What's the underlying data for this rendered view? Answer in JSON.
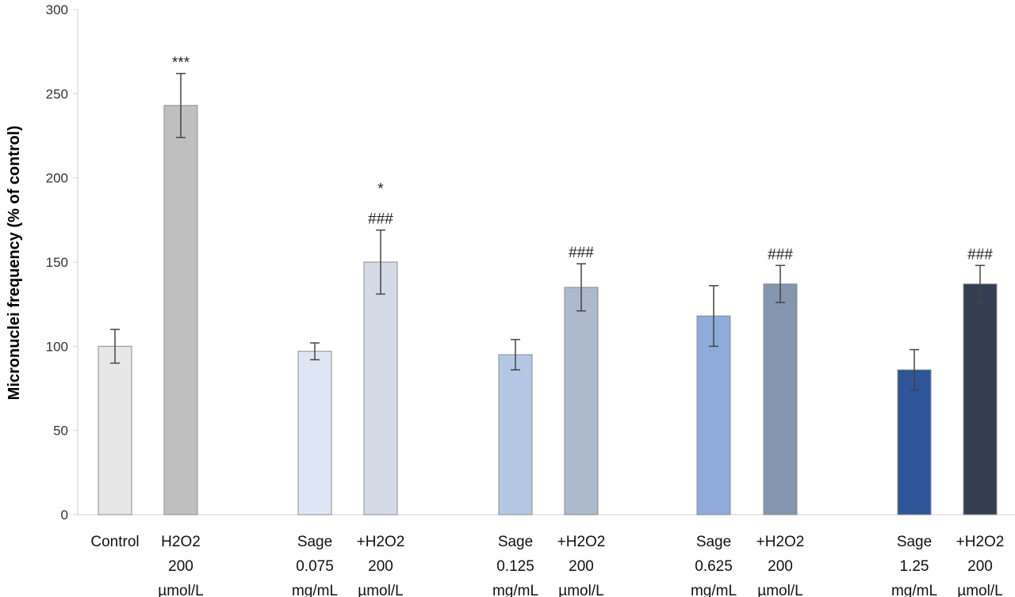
{
  "chart_data": {
    "type": "bar",
    "ylabel": "Micronuclei frequency (% of control)",
    "ylim": [
      0,
      300
    ],
    "yticks": [
      0,
      50,
      100,
      150,
      200,
      250,
      300
    ],
    "grid": false,
    "bars": [
      {
        "label_lines": [
          "Control"
        ],
        "value": 100,
        "error": 10,
        "color": "#e7e7e7",
        "annotations": []
      },
      {
        "label_lines": [
          "H2O2",
          "200",
          "µmol/L"
        ],
        "value": 243,
        "error": 19,
        "color": "#c0c0c0",
        "annotations": [
          "***"
        ]
      },
      {
        "label_lines": [
          "Sage",
          "0.075",
          "mg/mL"
        ],
        "value": 97,
        "error": 5,
        "color": "#dfe6f3",
        "annotations": []
      },
      {
        "label_lines": [
          "+H2O2",
          "200",
          "µmol/L"
        ],
        "value": 150,
        "error": 19,
        "color": "#d5dbe6",
        "annotations": [
          "*",
          "###"
        ]
      },
      {
        "label_lines": [
          "Sage",
          "0.125",
          "mg/mL"
        ],
        "value": 95,
        "error": 9,
        "color": "#b4c8e6",
        "annotations": []
      },
      {
        "label_lines": [
          "+H2O2",
          "200",
          "µmol/L"
        ],
        "value": 135,
        "error": 14,
        "color": "#adb9cc",
        "annotations": [
          "###"
        ]
      },
      {
        "label_lines": [
          "Sage",
          "0.625",
          "mg/mL"
        ],
        "value": 118,
        "error": 18,
        "color": "#8eabdb",
        "annotations": []
      },
      {
        "label_lines": [
          "+H2O2",
          "200",
          "µmol/L"
        ],
        "value": 137,
        "error": 11,
        "color": "#8496b0",
        "annotations": [
          "###"
        ]
      },
      {
        "label_lines": [
          "Sage",
          "1.25",
          "mg/mL"
        ],
        "value": 86,
        "error": 12,
        "color": "#2e5597",
        "annotations": []
      },
      {
        "label_lines": [
          "+H2O2",
          "200",
          "µmol/L"
        ],
        "value": 137,
        "error": 11,
        "color": "#333f50",
        "annotations": [
          "###"
        ]
      }
    ]
  }
}
